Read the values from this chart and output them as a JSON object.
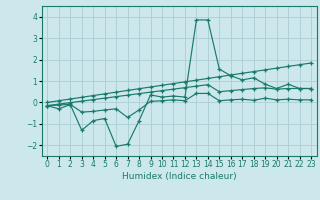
{
  "xlabel": "Humidex (Indice chaleur)",
  "x": [
    0,
    1,
    2,
    3,
    4,
    5,
    6,
    7,
    8,
    9,
    10,
    11,
    12,
    13,
    14,
    15,
    16,
    17,
    18,
    19,
    20,
    21,
    22,
    23
  ],
  "line1": [
    -0.15,
    -0.3,
    -0.1,
    -1.3,
    -0.85,
    -0.75,
    -2.05,
    -1.95,
    -0.85,
    0.35,
    0.25,
    0.3,
    0.25,
    3.85,
    3.85,
    1.55,
    1.25,
    1.05,
    1.15,
    0.85,
    0.65,
    0.85,
    0.65,
    0.65
  ],
  "line2": [
    0.0,
    0.08,
    0.16,
    0.24,
    0.32,
    0.4,
    0.48,
    0.56,
    0.64,
    0.72,
    0.8,
    0.88,
    0.96,
    1.04,
    1.12,
    1.2,
    1.28,
    1.36,
    1.44,
    1.52,
    1.6,
    1.68,
    1.76,
    1.84
  ],
  "line3": [
    -0.15,
    -0.08,
    -0.01,
    0.06,
    0.13,
    0.2,
    0.27,
    0.34,
    0.41,
    0.48,
    0.55,
    0.62,
    0.69,
    0.76,
    0.83,
    0.5,
    0.55,
    0.6,
    0.65,
    0.68,
    0.62,
    0.65,
    0.65,
    0.65
  ],
  "line4": [
    -0.15,
    -0.12,
    -0.09,
    -0.45,
    -0.42,
    -0.35,
    -0.3,
    -0.7,
    -0.35,
    0.05,
    0.08,
    0.12,
    0.08,
    0.42,
    0.42,
    0.08,
    0.12,
    0.15,
    0.1,
    0.2,
    0.12,
    0.15,
    0.12,
    0.12
  ],
  "line_color": "#1a7a6a",
  "bg_color": "#cce8ec",
  "grid_color": "#aacdd4",
  "ylim": [
    -2.5,
    4.5
  ],
  "yticks": [
    -2,
    -1,
    0,
    1,
    2,
    3,
    4
  ],
  "xticks": [
    0,
    1,
    2,
    3,
    4,
    5,
    6,
    7,
    8,
    9,
    10,
    11,
    12,
    13,
    14,
    15,
    16,
    17,
    18,
    19,
    20,
    21,
    22,
    23
  ]
}
